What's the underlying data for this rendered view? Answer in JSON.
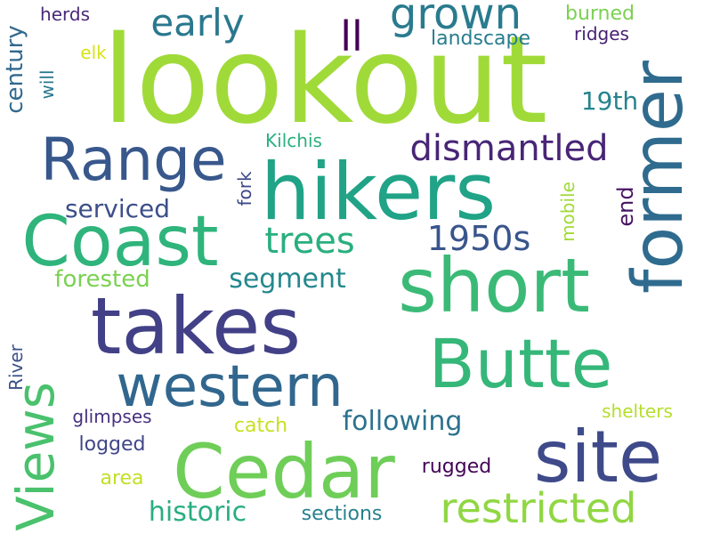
{
  "words": [
    {
      "text": "lookout",
      "color": "#a0da39",
      "rotated": false
    },
    {
      "text": "hikers",
      "color": "#20a386",
      "rotated": false
    },
    {
      "text": "short",
      "color": "#3aba76",
      "rotated": false
    },
    {
      "text": "site",
      "color": "#3e4a89",
      "rotated": false
    },
    {
      "text": "takes",
      "color": "#424086",
      "rotated": false
    },
    {
      "text": "Cedar",
      "color": "#6ece58",
      "rotated": false
    },
    {
      "text": "Coast",
      "color": "#2fb47c",
      "rotated": false
    },
    {
      "text": "former",
      "color": "#2f6b8e",
      "rotated": true
    },
    {
      "text": "Butte",
      "color": "#35b779",
      "rotated": false
    },
    {
      "text": "western",
      "color": "#31678e",
      "rotated": false
    },
    {
      "text": "Range",
      "color": "#38588c",
      "rotated": false
    },
    {
      "text": "Views",
      "color": "#4ac16d",
      "rotated": true
    },
    {
      "text": "restricted",
      "color": "#90d743",
      "rotated": false
    },
    {
      "text": "grown",
      "color": "#297b8e",
      "rotated": false
    },
    {
      "text": "dismantled",
      "color": "#482576",
      "rotated": false
    },
    {
      "text": "early",
      "color": "#2a788e",
      "rotated": false
    },
    {
      "text": "trees",
      "color": "#29af7f",
      "rotated": false
    },
    {
      "text": "1950s",
      "color": "#39558c",
      "rotated": false
    },
    {
      "text": "historic",
      "color": "#28ae80",
      "rotated": false
    },
    {
      "text": "following",
      "color": "#2c728e",
      "rotated": false
    },
    {
      "text": "ll",
      "color": "#440154",
      "rotated": false
    },
    {
      "text": "segment",
      "color": "#23888e",
      "rotated": false
    },
    {
      "text": "serviced",
      "color": "#3c4f8a",
      "rotated": false
    },
    {
      "text": "forested",
      "color": "#7ad151",
      "rotated": false
    },
    {
      "text": "century",
      "color": "#31688e",
      "rotated": true
    },
    {
      "text": "19th",
      "color": "#25848e",
      "rotated": false
    },
    {
      "text": "end",
      "color": "#471365",
      "rotated": true
    },
    {
      "text": "landscape",
      "color": "#287d8e",
      "rotated": false
    },
    {
      "text": "sections",
      "color": "#26828e",
      "rotated": false
    },
    {
      "text": "logged",
      "color": "#404688",
      "rotated": false
    },
    {
      "text": "Kilchis",
      "color": "#2ab07f",
      "rotated": false
    },
    {
      "text": "burned",
      "color": "#7ad151",
      "rotated": false
    },
    {
      "text": "catch",
      "color": "#c8e020",
      "rotated": false
    },
    {
      "text": "glimpses",
      "color": "#46327e",
      "rotated": false
    },
    {
      "text": "shelters",
      "color": "#b5de2b",
      "rotated": false
    },
    {
      "text": "rugged",
      "color": "#450457",
      "rotated": false
    },
    {
      "text": "area",
      "color": "#c2df23",
      "rotated": false
    },
    {
      "text": "ridges",
      "color": "#482173",
      "rotated": false
    },
    {
      "text": "mobile",
      "color": "#a2da37",
      "rotated": true
    },
    {
      "text": "herds",
      "color": "#482878",
      "rotated": false
    },
    {
      "text": "will",
      "color": "#2a788e",
      "rotated": true
    },
    {
      "text": "River",
      "color": "#3b518b",
      "rotated": true
    },
    {
      "text": "fork",
      "color": "#3e4989",
      "rotated": true
    },
    {
      "text": "elk",
      "color": "#d8e219",
      "rotated": false
    }
  ]
}
